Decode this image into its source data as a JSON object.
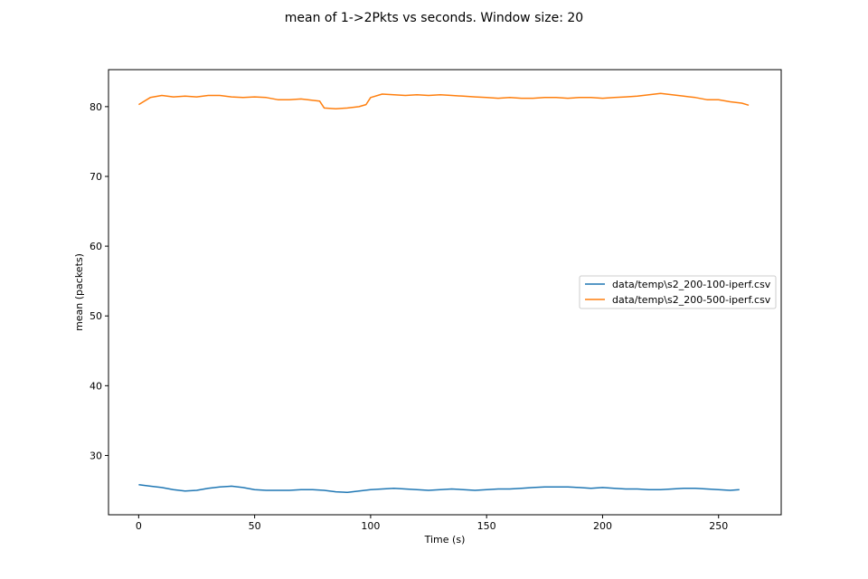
{
  "chart_data": {
    "type": "line",
    "title": "mean of 1->2Pkts vs seconds. Window size: 20",
    "xlabel": "Time (s)",
    "ylabel": "mean (packets)",
    "xlim": [
      -13,
      277
    ],
    "ylim": [
      21.5,
      85.3
    ],
    "xticks": [
      0,
      50,
      100,
      150,
      200,
      250
    ],
    "yticks": [
      30,
      40,
      50,
      60,
      70,
      80
    ],
    "grid": false,
    "legend_position": "center-right",
    "series": [
      {
        "name": "data/temp\\s2_200-100-iperf.csv",
        "color": "#1f77b4",
        "x": [
          0,
          5,
          10,
          15,
          20,
          25,
          30,
          35,
          40,
          45,
          50,
          55,
          60,
          65,
          70,
          75,
          80,
          85,
          90,
          95,
          100,
          105,
          110,
          115,
          120,
          125,
          130,
          135,
          140,
          145,
          150,
          155,
          160,
          165,
          170,
          175,
          180,
          185,
          190,
          195,
          200,
          205,
          210,
          215,
          220,
          225,
          230,
          235,
          240,
          245,
          250,
          255,
          259
        ],
        "y": [
          25.8,
          25.6,
          25.4,
          25.1,
          24.9,
          25.0,
          25.3,
          25.5,
          25.6,
          25.4,
          25.1,
          25.0,
          25.0,
          25.0,
          25.1,
          25.1,
          25.0,
          24.8,
          24.7,
          24.9,
          25.1,
          25.2,
          25.3,
          25.2,
          25.1,
          25.0,
          25.1,
          25.2,
          25.1,
          25.0,
          25.1,
          25.2,
          25.2,
          25.3,
          25.4,
          25.5,
          25.5,
          25.5,
          25.4,
          25.3,
          25.4,
          25.3,
          25.2,
          25.2,
          25.1,
          25.1,
          25.2,
          25.3,
          25.3,
          25.2,
          25.1,
          25.0,
          25.1
        ]
      },
      {
        "name": "data/temp\\s2_200-500-iperf.csv",
        "color": "#ff7f0e",
        "x": [
          0,
          5,
          10,
          15,
          20,
          25,
          30,
          35,
          40,
          45,
          50,
          55,
          60,
          65,
          70,
          75,
          78,
          80,
          85,
          90,
          95,
          98,
          100,
          105,
          110,
          115,
          120,
          125,
          130,
          135,
          140,
          145,
          150,
          155,
          160,
          165,
          170,
          175,
          180,
          185,
          190,
          195,
          200,
          205,
          210,
          215,
          220,
          225,
          230,
          235,
          240,
          245,
          250,
          255,
          260,
          263
        ],
        "y": [
          80.3,
          81.3,
          81.6,
          81.4,
          81.5,
          81.4,
          81.6,
          81.6,
          81.4,
          81.3,
          81.4,
          81.3,
          81.0,
          81.0,
          81.1,
          80.9,
          80.8,
          79.8,
          79.7,
          79.8,
          80.0,
          80.3,
          81.3,
          81.8,
          81.7,
          81.6,
          81.7,
          81.6,
          81.7,
          81.6,
          81.5,
          81.4,
          81.3,
          81.2,
          81.3,
          81.2,
          81.2,
          81.3,
          81.3,
          81.2,
          81.3,
          81.3,
          81.2,
          81.3,
          81.4,
          81.5,
          81.7,
          81.9,
          81.7,
          81.5,
          81.3,
          81.0,
          81.0,
          80.7,
          80.5,
          80.2
        ]
      }
    ]
  }
}
